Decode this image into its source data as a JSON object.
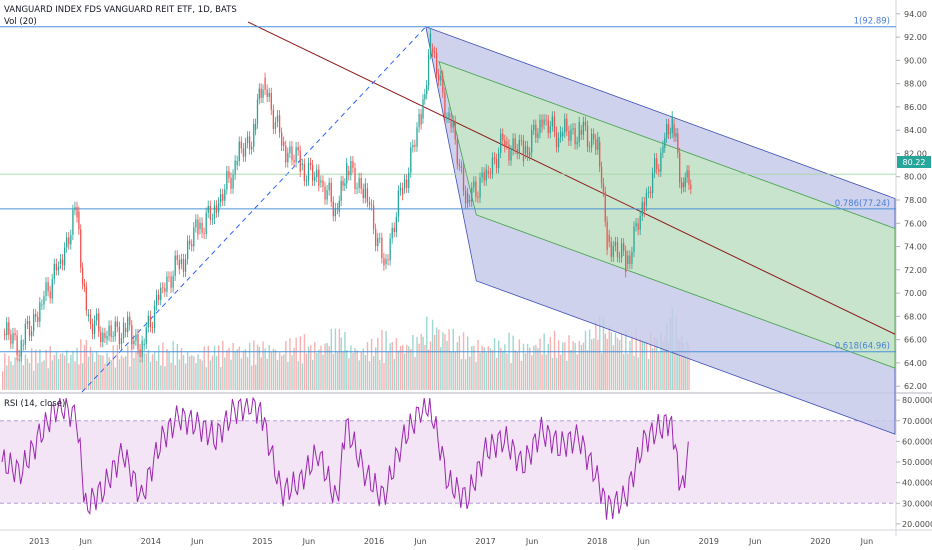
{
  "header": {
    "title": "VANGUARD INDEX FDS VANGUARD REIT ETF, 1D, BATS",
    "volume_label": "Vol (20)",
    "rsi_label": "RSI (14, close)"
  },
  "colors": {
    "up": "#26a69a",
    "down": "#ef5350",
    "fib_line": "#4a90d9",
    "pitchfork_outer": "#9fa8da",
    "pitchfork_inner": "#a5d6a7",
    "median": "#8b1a1a",
    "rsi": "#9c27b0",
    "rsi_band": "#f3e5f5"
  },
  "chart_data": [
    {
      "type": "line",
      "panel": "price",
      "x_ticks": [
        "2013",
        "Jun",
        "2014",
        "Jun",
        "2015",
        "Jun",
        "2016",
        "Jun",
        "2017",
        "Jun",
        "2018",
        "Jun",
        "2019",
        "Jun",
        "2020",
        "Jun"
      ],
      "y_ticks": [
        "94.00",
        "92.00",
        "90.00",
        "88.00",
        "86.00",
        "84.00",
        "82.00",
        "80.00",
        "78.00",
        "76.00",
        "74.00",
        "72.00",
        "70.00",
        "68.00",
        "66.00",
        "64.00",
        "62.00"
      ],
      "ylim": [
        61.5,
        94.5
      ],
      "last_price": "80.22",
      "fib_levels": [
        {
          "label": "1(92.89)",
          "value": 92.89
        },
        {
          "label": "0.786(77.24)",
          "value": 77.24
        },
        {
          "label": "0.618(64.96)",
          "value": 64.96
        }
      ],
      "series": [
        {
          "x": [
            "2012-09",
            "2012-11",
            "2013-01",
            "2013-03",
            "2013-05",
            "2013-06",
            "2013-08",
            "2013-10",
            "2013-12",
            "2014-02",
            "2014-04",
            "2014-06",
            "2014-08",
            "2014-10",
            "2014-12",
            "2015-01",
            "2015-03",
            "2015-05",
            "2015-07",
            "2015-09",
            "2015-10",
            "2015-12",
            "2016-02",
            "2016-04",
            "2016-06",
            "2016-07",
            "2016-09",
            "2016-11",
            "2017-01",
            "2017-03",
            "2017-05",
            "2017-07",
            "2017-09",
            "2017-11",
            "2018-01",
            "2018-02",
            "2018-04",
            "2018-06",
            "2018-08",
            "2018-09",
            "2018-10",
            "2018-11"
          ],
          "values": [
            66.5,
            65.5,
            69.0,
            72.5,
            77.0,
            68.0,
            66.0,
            67.0,
            65.5,
            70.5,
            72.5,
            75.5,
            77.0,
            81.0,
            84.0,
            88.5,
            83.0,
            81.0,
            79.5,
            77.0,
            80.5,
            79.0,
            72.5,
            79.0,
            85.0,
            91.0,
            85.0,
            78.0,
            80.5,
            83.0,
            82.0,
            84.5,
            83.5,
            84.0,
            83.0,
            75.0,
            72.5,
            77.5,
            82.5,
            84.5,
            79.5,
            80.22
          ]
        }
      ]
    },
    {
      "type": "bar",
      "panel": "volume",
      "title": "Vol (20)",
      "values": [
        3.0,
        3.5,
        3.2,
        4.0,
        3.8,
        4.5,
        3.6,
        3.9,
        4.2,
        3.7,
        4.1,
        3.5,
        3.9,
        4.6,
        4.0,
        4.8,
        4.2,
        5.0,
        4.4,
        6.5,
        4.6,
        4.2,
        5.2,
        4.8,
        5.5,
        7.5,
        6.0,
        4.5,
        4.8,
        5.0,
        4.6,
        5.2,
        4.9,
        5.4,
        6.8,
        7.0,
        5.5,
        5.0,
        6.2,
        7.8,
        5.5,
        5.2
      ]
    },
    {
      "type": "line",
      "panel": "rsi",
      "title": "RSI (14, close)",
      "y_ticks": [
        "80.0000",
        "70.0000",
        "60.0000",
        "50.0000",
        "40.0000",
        "30.0000",
        "20.0000"
      ],
      "ylim": [
        18,
        82
      ],
      "band": [
        30,
        70
      ],
      "series": [
        {
          "values": [
            50,
            45,
            62,
            78,
            72,
            28,
            38,
            55,
            32,
            60,
            72,
            68,
            62,
            75,
            78,
            72,
            35,
            40,
            55,
            30,
            68,
            45,
            32,
            60,
            75,
            78,
            40,
            32,
            55,
            62,
            48,
            65,
            58,
            62,
            42,
            28,
            32,
            60,
            68,
            70,
            35,
            58
          ]
        }
      ]
    }
  ]
}
